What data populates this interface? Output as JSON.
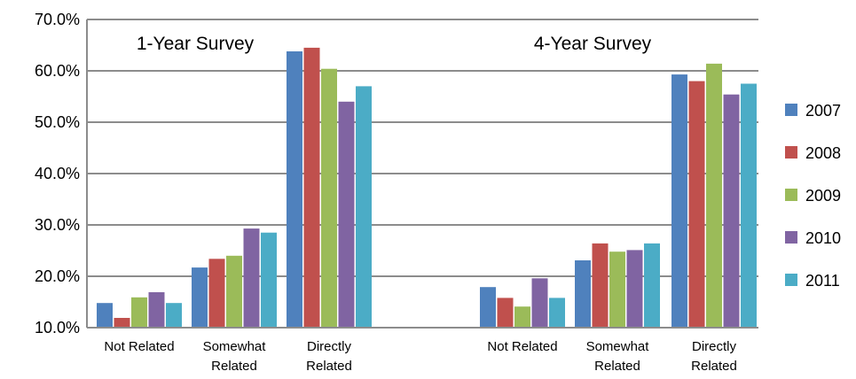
{
  "chart_data": {
    "type": "bar",
    "y_axis": {
      "min": 10.0,
      "max": 70.0,
      "step": 10.0,
      "tick_labels": [
        "10.0%",
        "20.0%",
        "30.0%",
        "40.0%",
        "50.0%",
        "60.0%",
        "70.0%"
      ]
    },
    "grid": true,
    "legend_position": "right",
    "series_names": [
      "2007",
      "2008",
      "2009",
      "2010",
      "2011"
    ],
    "colors": [
      "#4F81BD",
      "#C0504D",
      "#9BBB59",
      "#8064A2",
      "#4BACC6"
    ],
    "groups": [
      {
        "title": "1-Year Survey",
        "categories": [
          {
            "lines": [
              "Not Related"
            ],
            "values": [
              14.8,
              11.9,
              15.9,
              16.9,
              14.8
            ]
          },
          {
            "lines": [
              "Somewhat",
              "Related"
            ],
            "values": [
              21.7,
              23.4,
              24.0,
              29.3,
              28.5
            ]
          },
          {
            "lines": [
              "Directly",
              "Related"
            ],
            "values": [
              63.8,
              64.5,
              60.4,
              54.0,
              57.0
            ]
          }
        ]
      },
      {
        "title": "4-Year Survey",
        "categories": [
          {
            "lines": [
              "Not Related"
            ],
            "values": [
              17.9,
              15.8,
              14.1,
              19.6,
              15.8
            ]
          },
          {
            "lines": [
              "Somewhat",
              "Related"
            ],
            "values": [
              23.1,
              26.4,
              24.8,
              25.1,
              26.4
            ]
          },
          {
            "lines": [
              "Directly",
              "Related"
            ],
            "values": [
              59.3,
              58.0,
              61.4,
              55.4,
              57.5
            ]
          }
        ]
      }
    ]
  }
}
